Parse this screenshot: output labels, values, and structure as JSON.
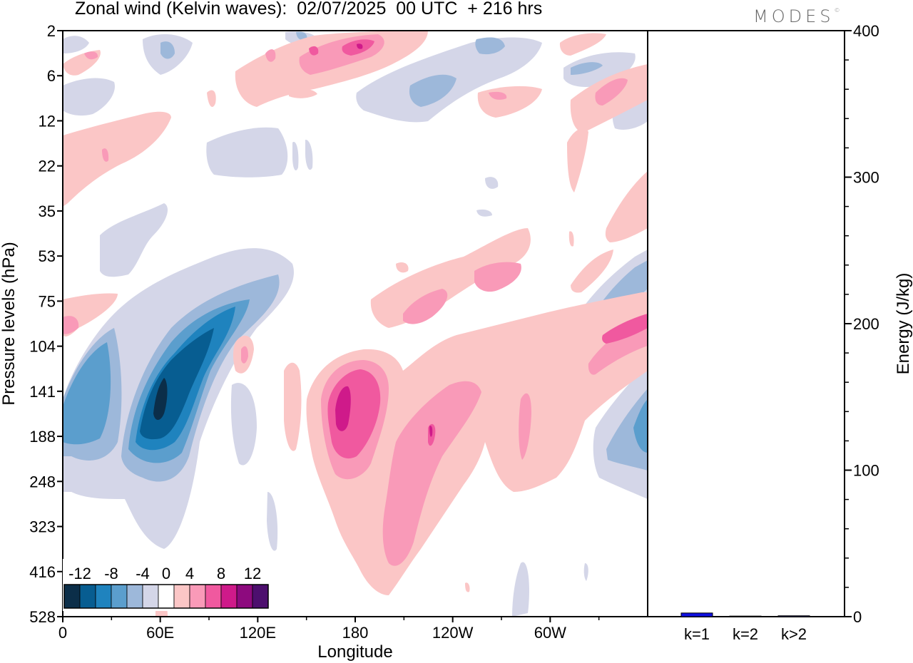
{
  "header": {
    "title": "Zonal wind (Kelvin waves):  02/07/2025  00 UTC  + 216 hrs",
    "brand": "MODES",
    "brand_mark": "©"
  },
  "chart_data": [
    {
      "type": "heatmap",
      "title": "Zonal wind (Kelvin waves):  02/07/2025  00 UTC  + 216 hrs",
      "xlabel": "Longitude",
      "ylabel": "Pressure levels (hPa)",
      "x_ticks": [
        "0",
        "60E",
        "120E",
        "180",
        "120W",
        "60W"
      ],
      "x_tick_degrees": [
        0,
        60,
        120,
        180,
        240,
        300
      ],
      "xlim": [
        0,
        360
      ],
      "y_ticks": [
        "2",
        "6",
        "12",
        "22",
        "35",
        "53",
        "75",
        "104",
        "141",
        "188",
        "248",
        "323",
        "416",
        "528"
      ],
      "colorbar": {
        "labels": [
          "-12",
          "-8",
          "-4",
          "0",
          "4",
          "8",
          "12"
        ],
        "bin_edges": [
          -14,
          -12,
          -10,
          -8,
          -6,
          -4,
          -2,
          2,
          4,
          6,
          8,
          10,
          12,
          14
        ],
        "colors": [
          "#0b2e49",
          "#075d91",
          "#1f83be",
          "#5b9ecd",
          "#9db8da",
          "#d4d6e8",
          "#ffffff",
          "#fbc6c6",
          "#f99ab8",
          "#f0599f",
          "#cf1a8a",
          "#8d0a7e",
          "#4d0f6e"
        ]
      },
      "features": [
        {
          "name": "negative core",
          "lon": 59,
          "level": "141",
          "value": -14
        },
        {
          "name": "negative band lower",
          "lon": 15,
          "level": "141",
          "value": -8
        },
        {
          "name": "positive core",
          "lon": 172,
          "level": "141",
          "value": 12
        },
        {
          "name": "positive lobe",
          "lon": 226,
          "level": "188",
          "value": 10
        },
        {
          "name": "negative right",
          "lon": 355,
          "level": "188",
          "value": -8
        },
        {
          "name": "negative upper",
          "lon": 215,
          "level": "6",
          "value": -6
        },
        {
          "name": "positive upper",
          "lon": 180,
          "level": "2",
          "value": 8
        },
        {
          "name": "positive upper right",
          "lon": 338,
          "level": "6",
          "value": 8
        }
      ]
    },
    {
      "type": "bar",
      "xlabel": "",
      "ylabel": "Energy (J/kg)",
      "categories": [
        "k=1",
        "k=2",
        "k>2"
      ],
      "values": [
        2.5,
        0.4,
        0.6
      ],
      "ylim": [
        0,
        400
      ],
      "y_ticks": [
        "0",
        "100",
        "200",
        "300",
        "400"
      ],
      "color": "#1010e0"
    }
  ]
}
